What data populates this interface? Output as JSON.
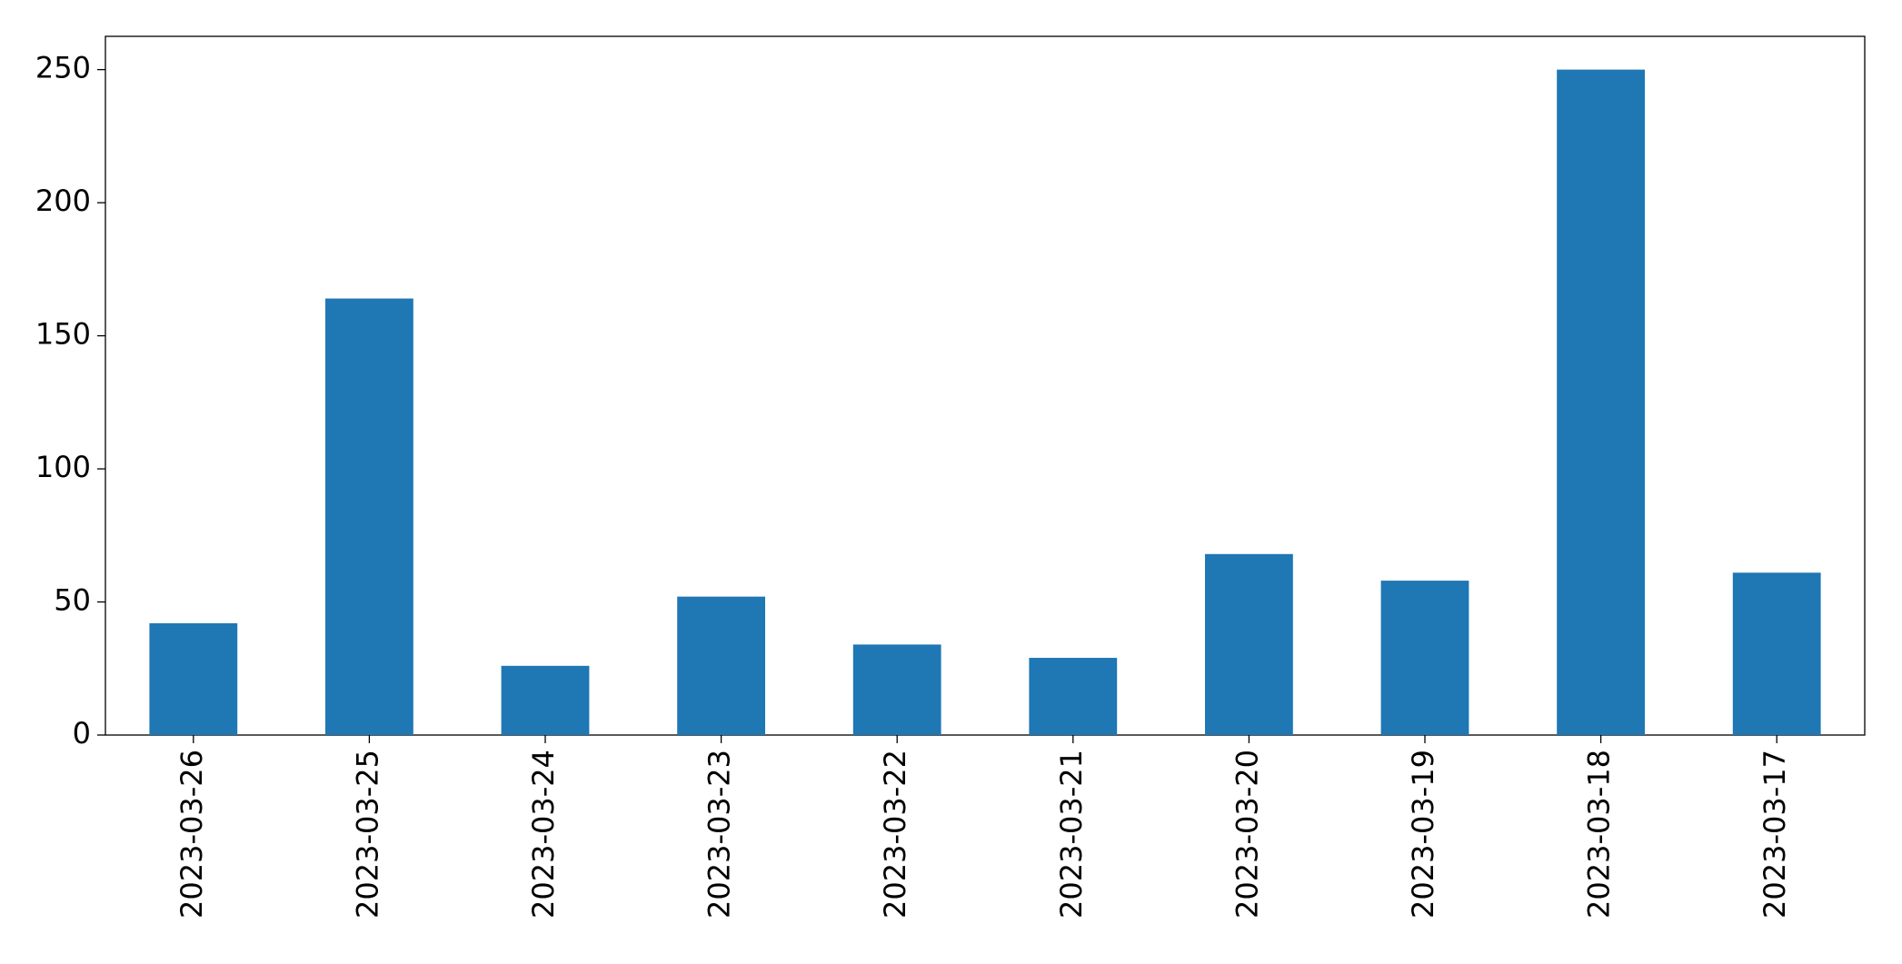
{
  "chart_data": {
    "type": "bar",
    "categories": [
      "2023-03-26",
      "2023-03-25",
      "2023-03-24",
      "2023-03-23",
      "2023-03-22",
      "2023-03-21",
      "2023-03-20",
      "2023-03-19",
      "2023-03-18",
      "2023-03-17"
    ],
    "values": [
      42,
      164,
      26,
      52,
      34,
      29,
      68,
      58,
      250,
      61
    ],
    "color": "#1f77b4",
    "ylim": [
      0,
      262.5
    ],
    "yticks": [
      0,
      50,
      100,
      150,
      200,
      250
    ],
    "grid": false
  }
}
